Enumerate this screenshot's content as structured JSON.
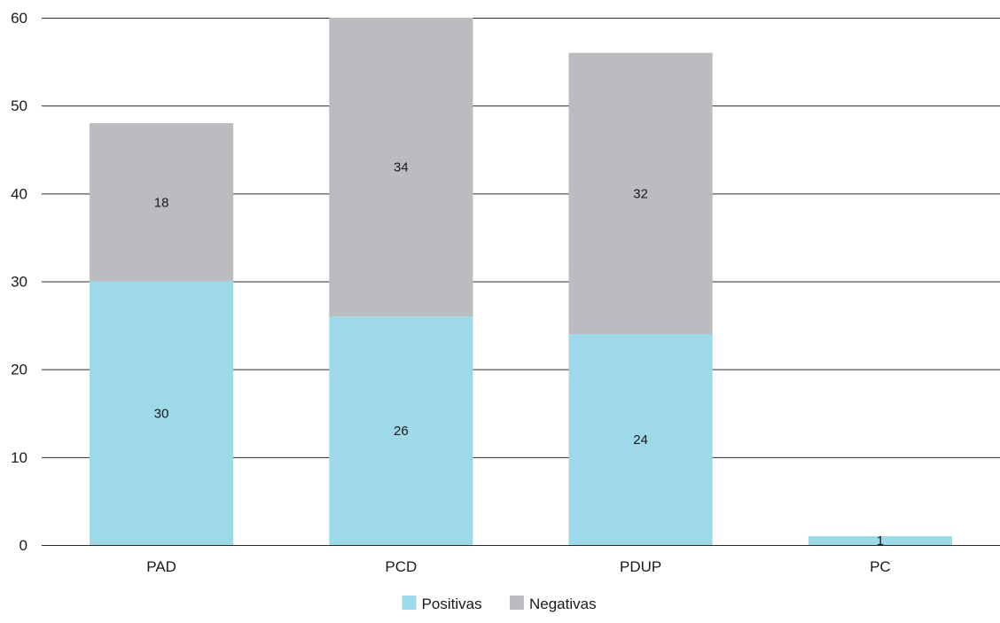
{
  "chart_data": {
    "type": "bar",
    "stacked": true,
    "categories": [
      "PAD",
      "PCD",
      "PDUP",
      "PC"
    ],
    "series": [
      {
        "name": "Positivas",
        "values": [
          30,
          26,
          24,
          1
        ],
        "color": "#9dd9e8"
      },
      {
        "name": "Negativas",
        "values": [
          18,
          34,
          32,
          0
        ],
        "color": "#bbbcc0"
      }
    ],
    "data_labels": {
      "Positivas": [
        "30",
        "26",
        "24",
        "1"
      ],
      "Negativas": [
        "18",
        "34",
        "32",
        ""
      ]
    },
    "ylim": [
      0,
      60
    ],
    "yticks": [
      0,
      10,
      20,
      30,
      40,
      50,
      60
    ],
    "grid": true,
    "legend_position": "bottom-center",
    "title": "",
    "xlabel": "",
    "ylabel": ""
  }
}
